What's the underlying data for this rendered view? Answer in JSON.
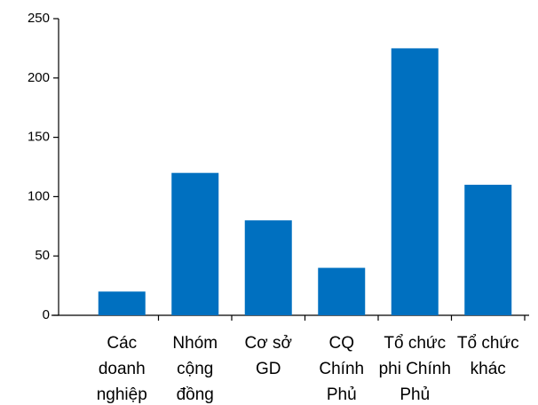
{
  "chart_data": {
    "type": "bar",
    "title": "",
    "xlabel": "",
    "ylabel": "",
    "categories": [
      "Các doanh nghiệp",
      "Nhóm cộng đồng",
      "Cơ sở GD",
      "CQ Chính Phủ",
      "Tổ chức phi Chính Phủ",
      "Tổ chức khác"
    ],
    "category_lines": [
      [
        "Các",
        "doanh",
        "nghiệp"
      ],
      [
        "Nhóm",
        "cộng",
        "đồng"
      ],
      [
        "Cơ sở",
        "GD"
      ],
      [
        "CQ",
        "Chính",
        "Phủ"
      ],
      [
        "Tổ chức",
        "phi Chính",
        "Phủ"
      ],
      [
        "Tổ chức",
        "khác"
      ]
    ],
    "values": [
      20,
      120,
      80,
      40,
      225,
      110
    ],
    "ylim": [
      0,
      250
    ],
    "yticks": [
      0,
      50,
      100,
      150,
      200,
      250
    ],
    "grid": false,
    "legend": "none",
    "bar_color": "#0070c0"
  }
}
